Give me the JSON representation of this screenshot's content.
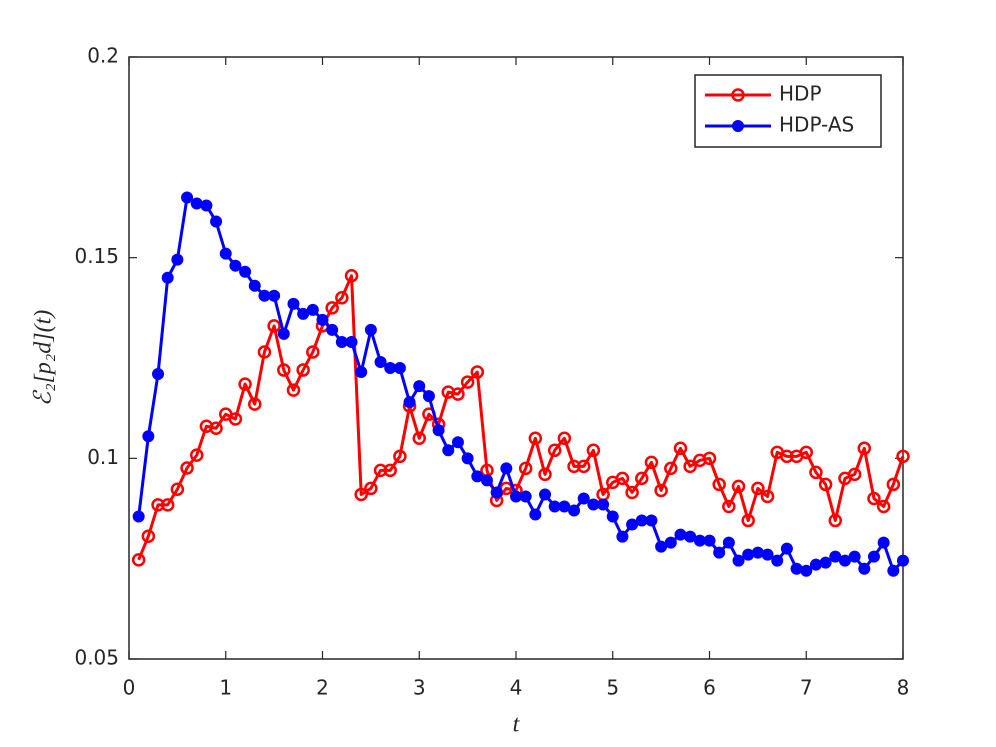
{
  "chart_data": {
    "type": "line",
    "xlabel": "t",
    "ylabel": "ℰ₂[p₂d](t)",
    "x": [
      0.1,
      0.2,
      0.3,
      0.4,
      0.5,
      0.6,
      0.7,
      0.8,
      0.9,
      1.0,
      1.1,
      1.2,
      1.3,
      1.4,
      1.5,
      1.6,
      1.7,
      1.8,
      1.9,
      2.0,
      2.1,
      2.2,
      2.3,
      2.4,
      2.5,
      2.6,
      2.7,
      2.8,
      2.9,
      3.0,
      3.1,
      3.2,
      3.3,
      3.4,
      3.5,
      3.6,
      3.7,
      3.8,
      3.9,
      4.0,
      4.1,
      4.2,
      4.3,
      4.4,
      4.5,
      4.6,
      4.7,
      4.8,
      4.9,
      5.0,
      5.1,
      5.2,
      5.3,
      5.4,
      5.5,
      5.6,
      5.7,
      5.8,
      5.9,
      6.0,
      6.1,
      6.2,
      6.3,
      6.4,
      6.5,
      6.6,
      6.7,
      6.8,
      6.9,
      7.0,
      7.1,
      7.2,
      7.3,
      7.4,
      7.5,
      7.6,
      7.7,
      7.8,
      7.9,
      8.0
    ],
    "series": [
      {
        "name": "HDP",
        "color": "#ff0000",
        "marker": "open-circle",
        "values": [
          0.0747,
          0.0806,
          0.0884,
          0.0884,
          0.0923,
          0.0976,
          0.1008,
          0.108,
          0.1075,
          0.111,
          0.1098,
          0.1185,
          0.1135,
          0.1265,
          0.133,
          0.122,
          0.117,
          0.122,
          0.1265,
          0.133,
          0.1375,
          0.14,
          0.1455,
          0.091,
          0.0925,
          0.097,
          0.097,
          0.1005,
          0.113,
          0.105,
          0.111,
          0.1085,
          0.1165,
          0.116,
          0.119,
          0.1215,
          0.097,
          0.0895,
          0.0925,
          0.092,
          0.0975,
          0.105,
          0.096,
          0.102,
          0.105,
          0.098,
          0.098,
          0.102,
          0.091,
          0.094,
          0.095,
          0.0915,
          0.095,
          0.099,
          0.092,
          0.0975,
          0.1025,
          0.098,
          0.0995,
          0.1,
          0.0935,
          0.088,
          0.093,
          0.0845,
          0.0925,
          0.0905,
          0.1015,
          0.1005,
          0.1005,
          0.1015,
          0.0965,
          0.0935,
          0.0845,
          0.095,
          0.096,
          0.1025,
          0.09,
          0.088,
          0.0935,
          0.1005
        ]
      },
      {
        "name": "HDP-AS",
        "color": "#0000ff",
        "marker": "filled-dot",
        "values": [
          0.0855,
          0.1055,
          0.121,
          0.145,
          0.1495,
          0.165,
          0.1635,
          0.163,
          0.159,
          0.151,
          0.148,
          0.1465,
          0.143,
          0.1405,
          0.1405,
          0.131,
          0.1385,
          0.136,
          0.137,
          0.1345,
          0.132,
          0.129,
          0.129,
          0.1215,
          0.132,
          0.124,
          0.1225,
          0.1225,
          0.114,
          0.118,
          0.1155,
          0.107,
          0.102,
          0.104,
          0.1,
          0.0955,
          0.0945,
          0.0915,
          0.0975,
          0.0905,
          0.0905,
          0.086,
          0.091,
          0.088,
          0.088,
          0.087,
          0.09,
          0.0885,
          0.0885,
          0.0855,
          0.0805,
          0.0835,
          0.0845,
          0.0845,
          0.078,
          0.079,
          0.081,
          0.0805,
          0.0795,
          0.0795,
          0.0765,
          0.079,
          0.0745,
          0.076,
          0.0765,
          0.076,
          0.0745,
          0.0775,
          0.0725,
          0.072,
          0.0735,
          0.074,
          0.0755,
          0.0745,
          0.0755,
          0.0725,
          0.0755,
          0.079,
          0.072,
          0.0745
        ]
      }
    ],
    "xlim": [
      0,
      8
    ],
    "xticks": [
      0,
      1,
      2,
      3,
      4,
      5,
      6,
      7,
      8
    ],
    "ylim": [
      0.05,
      0.2
    ],
    "yticks": [
      0.05,
      0.1,
      0.15,
      0.2
    ],
    "grid": false,
    "legend": "top-right"
  }
}
